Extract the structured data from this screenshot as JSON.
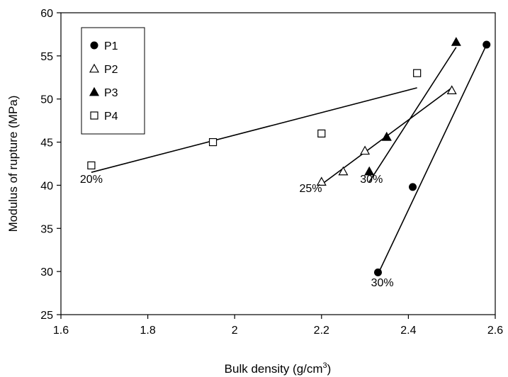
{
  "chart_data": {
    "type": "scatter",
    "xlabel": "Bulk density (g/cm",
    "xlabel_superscript": "3",
    "xlabel_suffix": ")",
    "ylabel": "Modulus of rupture (MPa)",
    "xlim": [
      1.6,
      2.6
    ],
    "ylim": [
      25,
      60
    ],
    "xticks": [
      1.6,
      1.8,
      2.0,
      2.2,
      2.4,
      2.6
    ],
    "xtick_labels": [
      "1.6",
      "1.8",
      "2",
      "2.2",
      "2.4",
      "2.6"
    ],
    "yticks": [
      25,
      30,
      35,
      40,
      45,
      50,
      55,
      60
    ],
    "ytick_labels": [
      "25",
      "30",
      "35",
      "40",
      "45",
      "50",
      "55",
      "60"
    ],
    "grid": false,
    "legend_position": "top-left",
    "series": [
      {
        "name": "P1",
        "marker": "filled-circle",
        "points": [
          [
            2.33,
            29.9
          ],
          [
            2.41,
            39.8
          ],
          [
            2.58,
            56.3
          ]
        ],
        "trendline": [
          [
            2.33,
            29.7
          ],
          [
            2.58,
            56.3
          ]
        ]
      },
      {
        "name": "P2",
        "marker": "open-triangle",
        "points": [
          [
            2.2,
            40.4
          ],
          [
            2.25,
            41.6
          ],
          [
            2.3,
            44.0
          ],
          [
            2.35,
            45.6
          ],
          [
            2.5,
            51.0
          ]
        ],
        "trendline": [
          [
            2.2,
            40.1
          ],
          [
            2.5,
            51.3
          ]
        ]
      },
      {
        "name": "P3",
        "marker": "filled-triangle",
        "points": [
          [
            2.31,
            41.6
          ],
          [
            2.35,
            45.6
          ],
          [
            2.51,
            56.6
          ]
        ],
        "trendline": [
          [
            2.31,
            40.4
          ],
          [
            2.51,
            56.0
          ]
        ]
      },
      {
        "name": "P4",
        "marker": "open-square",
        "points": [
          [
            1.67,
            42.3
          ],
          [
            1.95,
            45.0
          ],
          [
            2.2,
            46.0
          ],
          [
            2.42,
            53.0
          ]
        ],
        "trendline": [
          [
            1.67,
            41.5
          ],
          [
            2.42,
            51.3
          ]
        ]
      }
    ],
    "annotations": [
      {
        "text": "20%",
        "x": 1.67,
        "y": 40.3
      },
      {
        "text": "25%",
        "x": 2.175,
        "y": 39.2
      },
      {
        "text": "30%",
        "x": 2.315,
        "y": 40.3
      },
      {
        "text": "30%",
        "x": 2.34,
        "y": 28.3
      }
    ]
  }
}
